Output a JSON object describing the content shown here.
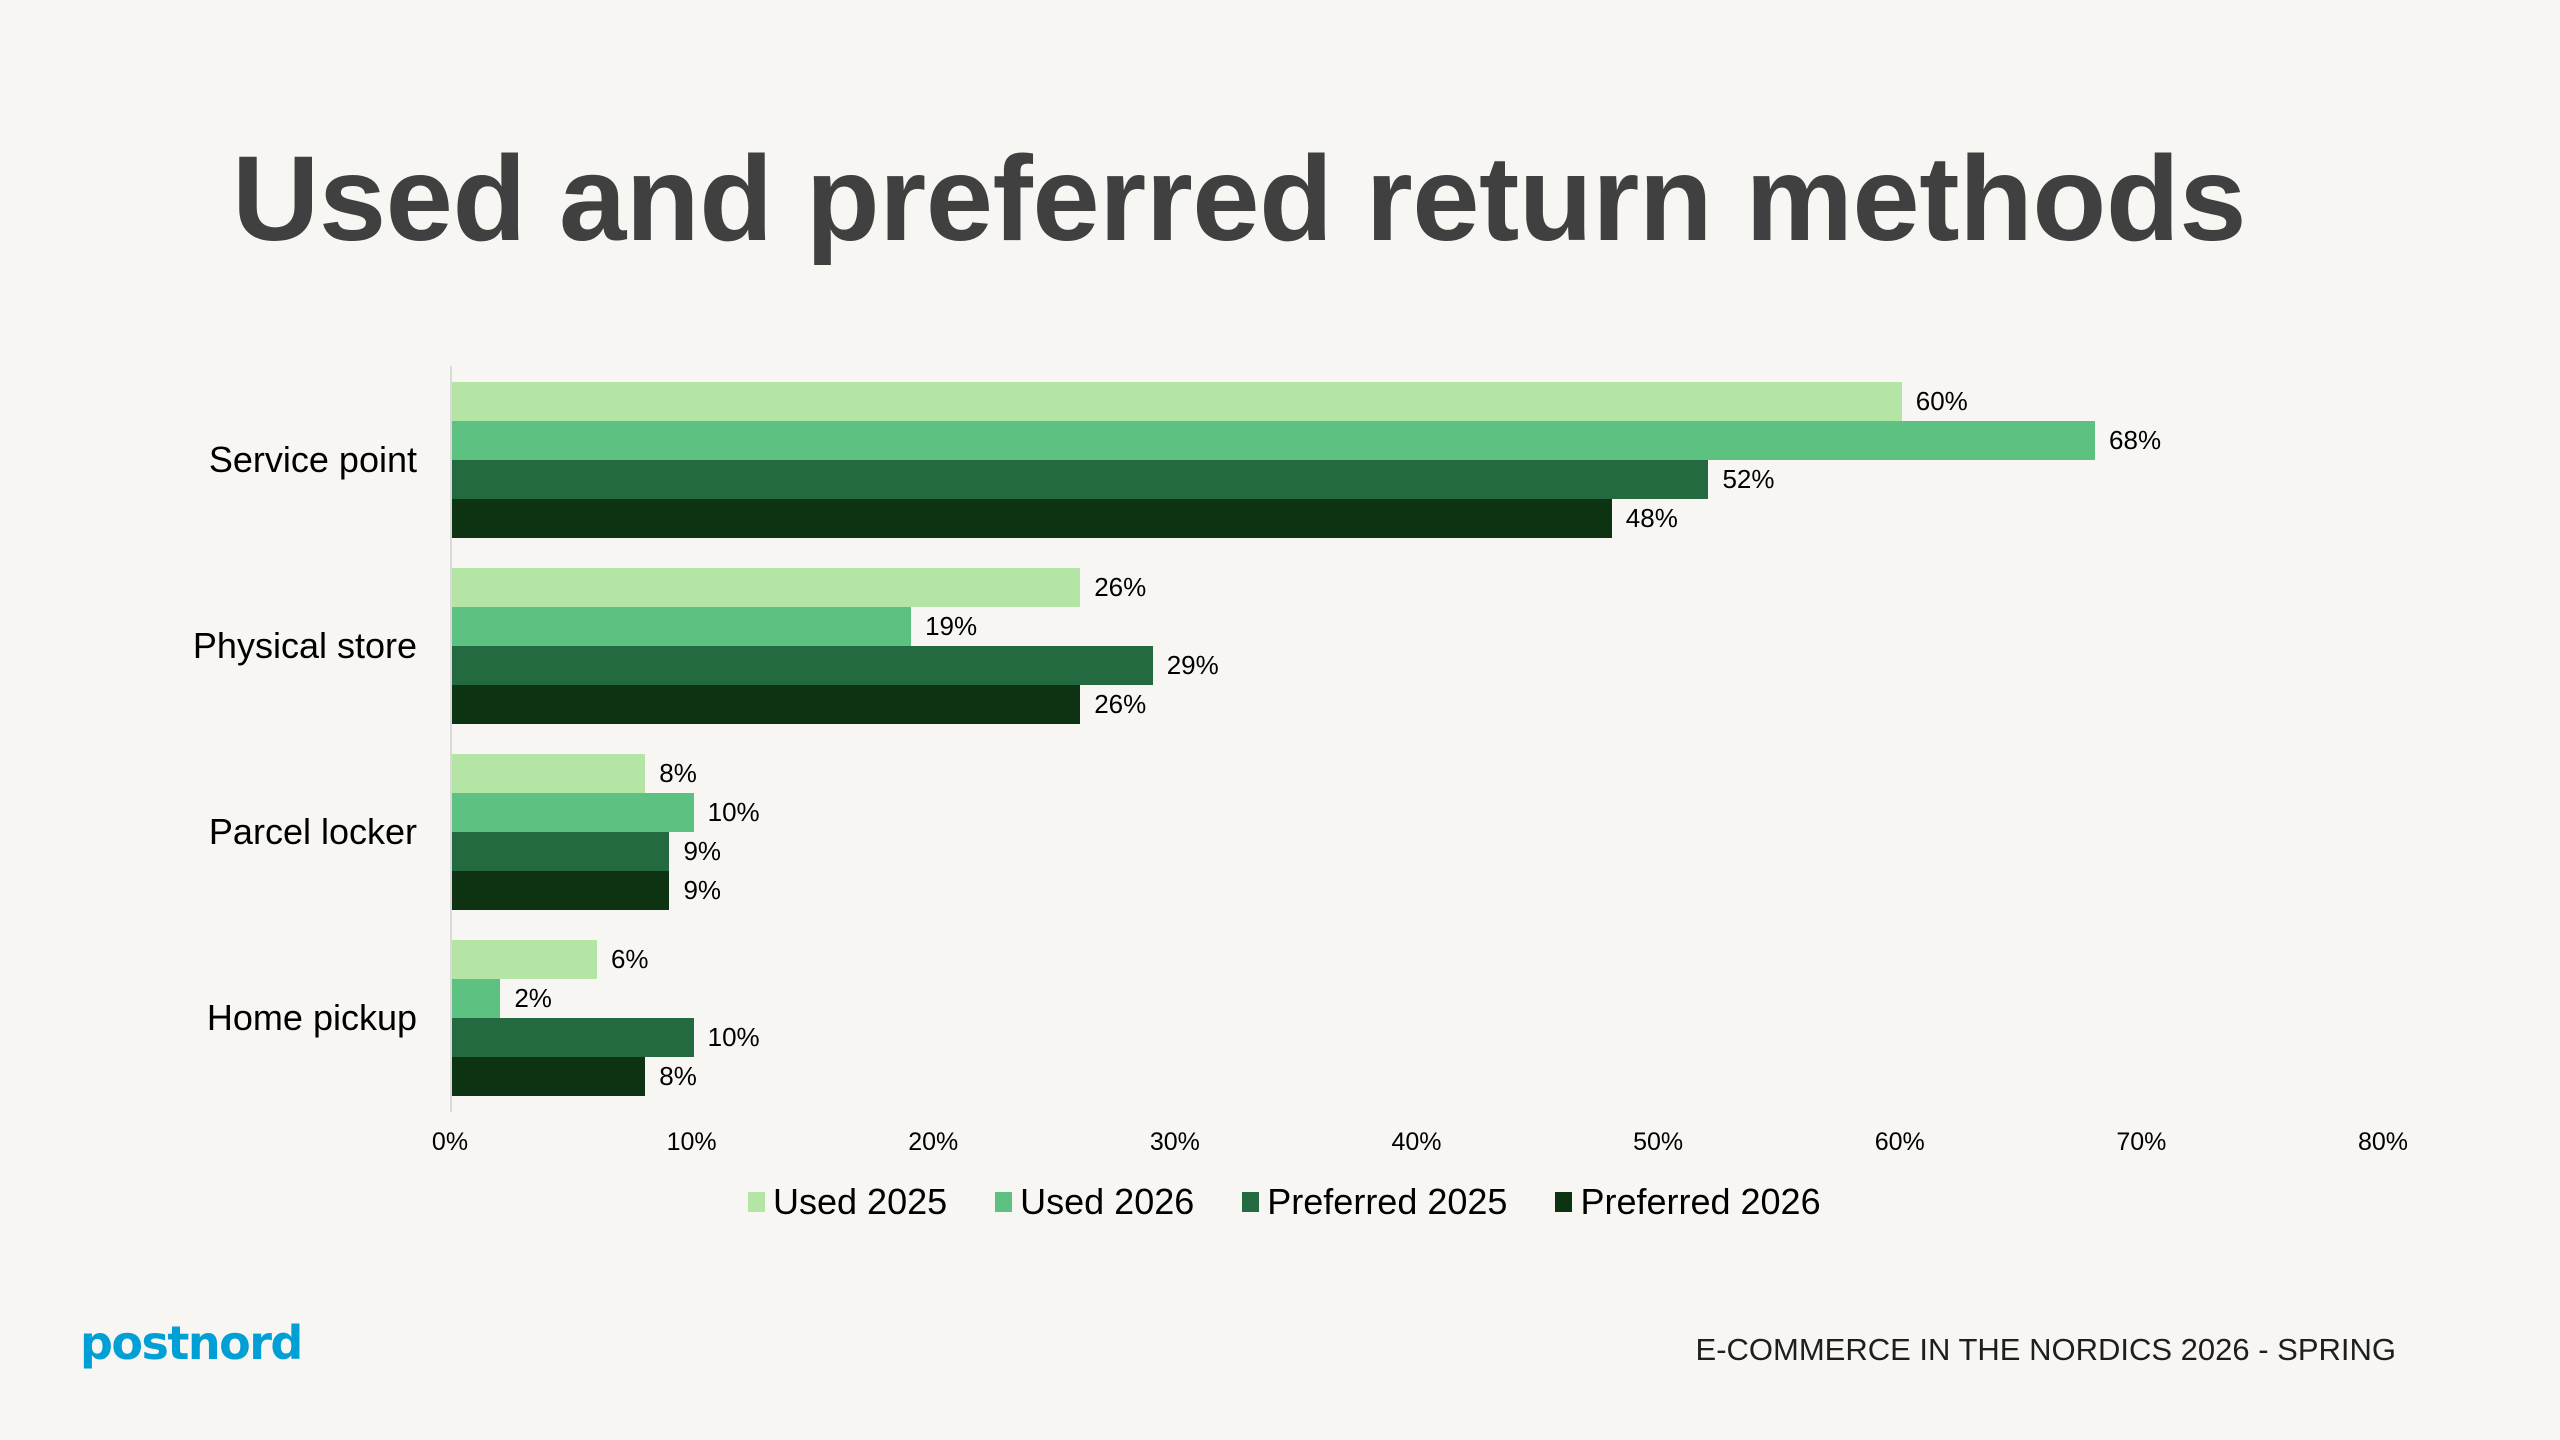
{
  "slide": {
    "title": "Used and preferred return methods",
    "footer": "E-COMMERCE IN THE NORDICS 2026 - SPRING",
    "logo_text": "postnord",
    "logo_color": "#00A0D6",
    "background": "#F7F6F2"
  },
  "chart_data": {
    "type": "bar",
    "orientation": "horizontal",
    "title": "Used and preferred return methods",
    "xlabel": "",
    "ylabel": "",
    "xlim": [
      0,
      80
    ],
    "x_ticks": [
      "0%",
      "10%",
      "20%",
      "30%",
      "40%",
      "50%",
      "60%",
      "70%",
      "80%"
    ],
    "grid": false,
    "legend_position": "bottom",
    "categories": [
      "Service point",
      "Physical store",
      "Parcel locker",
      "Home pickup"
    ],
    "series": [
      {
        "name": "Used 2025",
        "color": "#B5E5A4",
        "values": [
          60,
          26,
          8,
          6
        ],
        "labels": [
          "60%",
          "26%",
          "8%",
          "6%"
        ]
      },
      {
        "name": "Used 2026",
        "color": "#5CC181",
        "values": [
          68,
          19,
          10,
          2
        ],
        "labels": [
          "68%",
          "19%",
          "10%",
          "2%"
        ]
      },
      {
        "name": "Preferred 2025",
        "color": "#246A40",
        "values": [
          52,
          29,
          9,
          10
        ],
        "labels": [
          "52%",
          "29%",
          "9%",
          "10%"
        ]
      },
      {
        "name": "Preferred 2026",
        "color": "#0D3313",
        "values": [
          48,
          26,
          9,
          8
        ],
        "labels": [
          "48%",
          "26%",
          "9%",
          "8%"
        ]
      }
    ]
  }
}
